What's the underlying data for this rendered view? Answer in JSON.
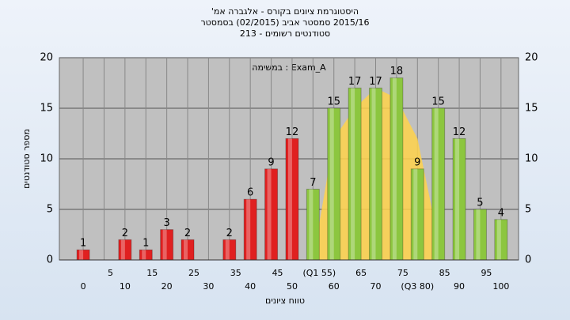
{
  "chart_data": {
    "type": "bar",
    "title": "היסטוגרמת ציונים בקורס - אלגברה אמ'",
    "subtitle": "2015/16 סמסטר אביב (02/2015) בסמסטר",
    "subtitle2": "סטודנטים רשומים - 213",
    "annotation": "Exam_A : במשימה",
    "x_label": "טווח ציונים",
    "y_label": "מספר סטודנטים",
    "x": [
      0,
      5,
      10,
      15,
      20,
      25,
      30,
      35,
      40,
      45,
      50,
      55,
      60,
      65,
      70,
      75,
      80,
      85,
      90,
      95,
      100
    ],
    "x_tick_labels": [
      "0",
      "5",
      "10",
      "15",
      "20",
      "25",
      "30",
      "35",
      "40",
      "45",
      "50",
      "(Q1 55)",
      "60",
      "65",
      "70",
      "75",
      "(Q3 80)",
      "85",
      "90",
      "95",
      "100"
    ],
    "values": [
      1,
      0,
      2,
      1,
      3,
      2,
      0,
      2,
      6,
      9,
      12,
      7,
      15,
      17,
      17,
      18,
      9,
      15,
      12,
      5,
      4
    ],
    "colors": [
      "#e02020",
      "#e02020",
      "#e02020",
      "#e02020",
      "#e02020",
      "#e02020",
      "#e02020",
      "#e02020",
      "#e02020",
      "#e02020",
      "#e02020",
      "#8cc63f",
      "#8cc63f",
      "#8cc63f",
      "#8cc63f",
      "#8cc63f",
      "#8cc63f",
      "#8cc63f",
      "#8cc63f",
      "#8cc63f",
      "#8cc63f"
    ],
    "overlay": {
      "color": "#ffd24a",
      "x": [
        55,
        60,
        65,
        70,
        75,
        80,
        85
      ],
      "values": [
        0,
        12,
        15,
        17,
        16,
        12,
        2
      ]
    },
    "xlim": [
      -5.7,
      104.2
    ],
    "ylim": [
      0,
      20
    ],
    "yticks": [
      0,
      5,
      10,
      15,
      20
    ],
    "grid": true
  }
}
